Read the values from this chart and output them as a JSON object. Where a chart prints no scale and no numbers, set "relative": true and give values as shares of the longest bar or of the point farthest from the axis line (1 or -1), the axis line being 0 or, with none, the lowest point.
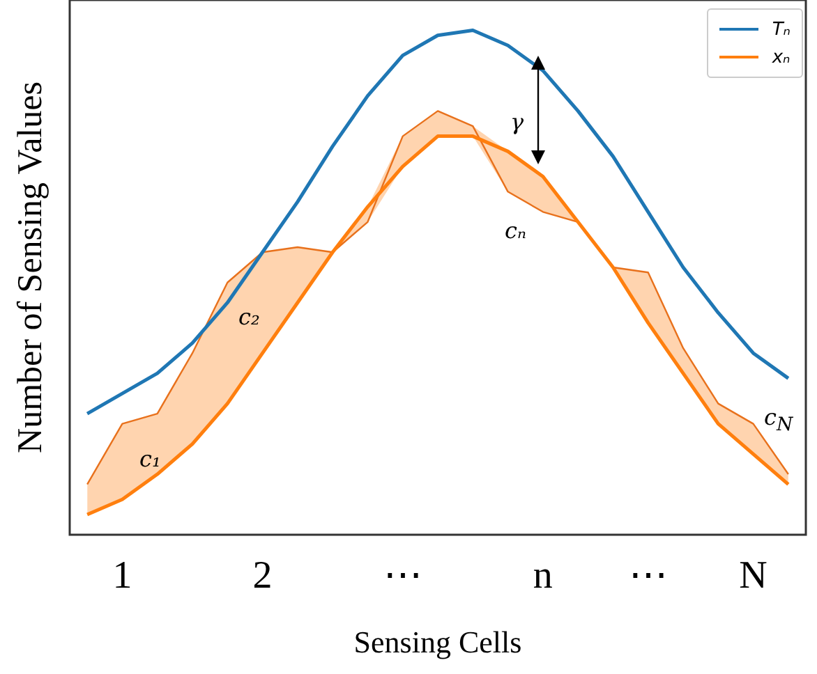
{
  "chart_data": {
    "type": "line",
    "relative": true,
    "xlabel": "Sensing Cells",
    "ylabel": "Number of Sensing Values",
    "legend": "top right",
    "grid": false,
    "marker": "none",
    "line_style": "solid",
    "categories": [
      null,
      "1",
      null,
      null,
      null,
      "2",
      null,
      null,
      null,
      "⋯",
      null,
      null,
      null,
      "n",
      null,
      null,
      "⋯",
      null,
      null,
      "N",
      null
    ],
    "series": [
      {
        "name": "Tₙ",
        "color": "#1f77b4",
        "values": [
          0.24,
          0.28,
          0.32,
          0.38,
          0.46,
          0.56,
          0.66,
          0.77,
          0.87,
          0.95,
          0.99,
          1,
          0.97,
          0.92,
          0.84,
          0.75,
          0.64,
          0.53,
          0.44,
          0.36,
          0.31
        ]
      },
      {
        "name": "xₙ",
        "color": "#ff7f0e",
        "values": [
          0.04,
          0.07,
          0.12,
          0.18,
          0.26,
          0.36,
          0.46,
          0.56,
          0.65,
          0.73,
          0.79,
          0.79,
          0.76,
          0.71,
          0.62,
          0.53,
          0.42,
          0.32,
          0.22,
          0.16,
          0.1
        ],
        "lower": [
          0.04,
          0.07,
          0.12,
          0.18,
          0.26,
          0.36,
          0.46,
          0.56,
          0.62,
          0.73,
          0.79,
          0.79,
          0.68,
          0.64,
          0.62,
          0.53,
          0.42,
          0.32,
          0.22,
          0.16,
          0.1
        ],
        "upper": [
          0.1,
          0.22,
          0.24,
          0.36,
          0.5,
          0.56,
          0.57,
          0.56,
          0.65,
          0.79,
          0.84,
          0.81,
          0.76,
          0.71,
          0.62,
          0.53,
          0.52,
          0.37,
          0.26,
          0.22,
          0.12
        ]
      },
      {
        "color": "#e8711c",
        "values": [
          0.1,
          0.22,
          0.24,
          0.36,
          0.5,
          0.56,
          0.57,
          0.56,
          0.62,
          0.79,
          0.84,
          0.81,
          0.68,
          0.64,
          0.62,
          0.53,
          0.52,
          0.37,
          0.26,
          0.22,
          0.12
        ]
      }
    ],
    "annotations": [
      "γ",
      "c₁",
      "c₂",
      "cₙ",
      "c$_{N}$"
    ]
  }
}
